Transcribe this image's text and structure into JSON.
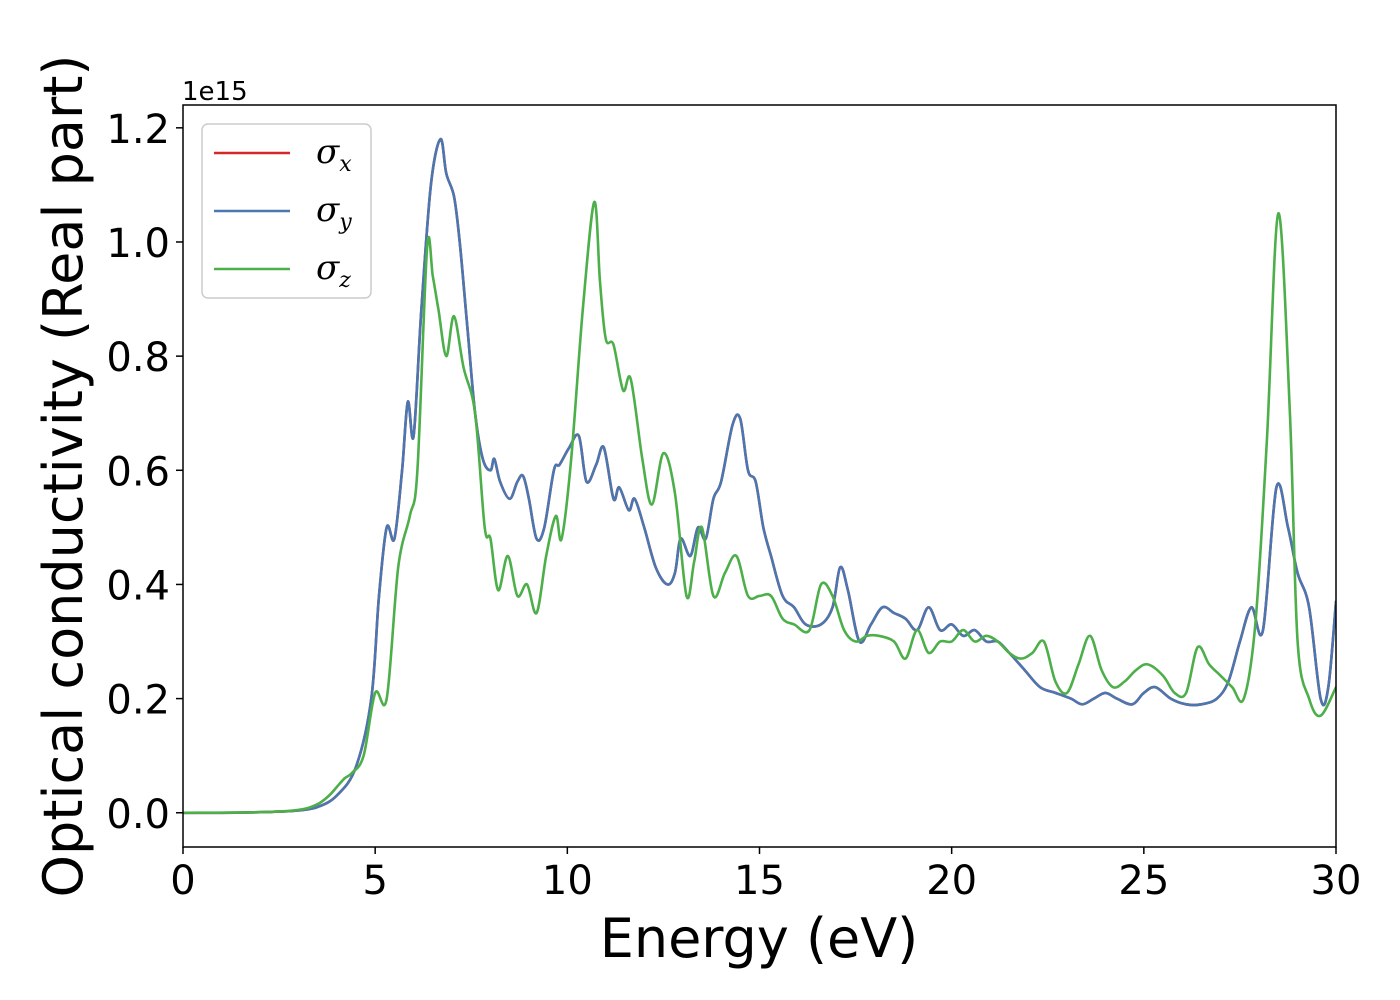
{
  "chart_data": {
    "type": "line",
    "xlabel": "Energy (eV)",
    "ylabel": "Optical conductivity (Real part)",
    "y_offset_label": "1e15",
    "xlim": [
      0,
      30
    ],
    "ylim": [
      -0.06,
      1.24
    ],
    "x_ticks": [
      0,
      5,
      10,
      15,
      20,
      25,
      30
    ],
    "x_tick_labels": [
      "0",
      "5",
      "10",
      "15",
      "20",
      "25",
      "30"
    ],
    "y_ticks": [
      0.0,
      0.2,
      0.4,
      0.6,
      0.8,
      1.0,
      1.2
    ],
    "y_tick_labels": [
      "0.0",
      "0.2",
      "0.4",
      "0.6",
      "0.8",
      "1.0",
      "1.2"
    ],
    "grid": false,
    "legend_position": "top-left",
    "series": [
      {
        "name": "σx",
        "symbol": "σ",
        "subscript": "x",
        "color": "#d62728",
        "x": [
          0,
          1,
          2,
          2.5,
          3,
          3.5,
          4,
          4.5,
          4.9,
          5.1,
          5.3,
          5.5,
          5.7,
          5.85,
          6.0,
          6.2,
          6.45,
          6.7,
          6.85,
          7.05,
          7.2,
          7.4,
          7.6,
          7.8,
          8.0,
          8.1,
          8.25,
          8.5,
          8.7,
          8.85,
          9.0,
          9.2,
          9.4,
          9.65,
          9.8,
          10.05,
          10.3,
          10.5,
          10.75,
          10.95,
          11.2,
          11.35,
          11.6,
          11.75,
          12.0,
          12.3,
          12.6,
          12.8,
          12.95,
          13.2,
          13.4,
          13.6,
          13.8,
          14.0,
          14.3,
          14.5,
          14.7,
          14.9,
          15.1,
          15.3,
          15.6,
          15.9,
          16.2,
          16.6,
          16.9,
          17.1,
          17.3,
          17.6,
          17.9,
          18.2,
          18.5,
          18.8,
          19.1,
          19.4,
          19.7,
          20.0,
          20.3,
          20.6,
          20.9,
          21.2,
          21.5,
          21.9,
          22.3,
          22.7,
          23.1,
          23.4,
          23.7,
          24.0,
          24.3,
          24.7,
          25.0,
          25.3,
          25.7,
          26.1,
          26.5,
          26.9,
          27.2,
          27.5,
          27.8,
          28.1,
          28.45,
          28.75,
          29.0,
          29.3,
          29.6,
          29.8,
          30.0
        ],
        "y": [
          0,
          0,
          0.001,
          0.002,
          0.004,
          0.01,
          0.03,
          0.08,
          0.2,
          0.38,
          0.5,
          0.48,
          0.6,
          0.72,
          0.66,
          0.88,
          1.1,
          1.18,
          1.12,
          1.08,
          1.0,
          0.85,
          0.7,
          0.62,
          0.6,
          0.62,
          0.58,
          0.55,
          0.58,
          0.59,
          0.55,
          0.48,
          0.5,
          0.6,
          0.61,
          0.64,
          0.66,
          0.58,
          0.61,
          0.64,
          0.55,
          0.57,
          0.53,
          0.55,
          0.5,
          0.43,
          0.4,
          0.42,
          0.48,
          0.45,
          0.5,
          0.48,
          0.55,
          0.58,
          0.68,
          0.69,
          0.6,
          0.58,
          0.5,
          0.45,
          0.38,
          0.36,
          0.33,
          0.33,
          0.36,
          0.43,
          0.39,
          0.3,
          0.33,
          0.36,
          0.35,
          0.34,
          0.32,
          0.36,
          0.32,
          0.33,
          0.31,
          0.32,
          0.3,
          0.3,
          0.28,
          0.25,
          0.22,
          0.21,
          0.2,
          0.19,
          0.2,
          0.21,
          0.2,
          0.19,
          0.21,
          0.22,
          0.2,
          0.19,
          0.19,
          0.2,
          0.23,
          0.3,
          0.36,
          0.32,
          0.57,
          0.5,
          0.42,
          0.36,
          0.2,
          0.22,
          0.37
        ]
      },
      {
        "name": "σy",
        "symbol": "σ",
        "subscript": "y",
        "color": "#4a77b0",
        "x": [
          0,
          1,
          2,
          2.5,
          3,
          3.5,
          4,
          4.5,
          4.9,
          5.1,
          5.3,
          5.5,
          5.7,
          5.85,
          6.0,
          6.2,
          6.45,
          6.7,
          6.85,
          7.05,
          7.2,
          7.4,
          7.6,
          7.8,
          8.0,
          8.1,
          8.25,
          8.5,
          8.7,
          8.85,
          9.0,
          9.2,
          9.4,
          9.65,
          9.8,
          10.05,
          10.3,
          10.5,
          10.75,
          10.95,
          11.2,
          11.35,
          11.6,
          11.75,
          12.0,
          12.3,
          12.6,
          12.8,
          12.95,
          13.2,
          13.4,
          13.6,
          13.8,
          14.0,
          14.3,
          14.5,
          14.7,
          14.9,
          15.1,
          15.3,
          15.6,
          15.9,
          16.2,
          16.6,
          16.9,
          17.1,
          17.3,
          17.6,
          17.9,
          18.2,
          18.5,
          18.8,
          19.1,
          19.4,
          19.7,
          20.0,
          20.3,
          20.6,
          20.9,
          21.2,
          21.5,
          21.9,
          22.3,
          22.7,
          23.1,
          23.4,
          23.7,
          24.0,
          24.3,
          24.7,
          25.0,
          25.3,
          25.7,
          26.1,
          26.5,
          26.9,
          27.2,
          27.5,
          27.8,
          28.1,
          28.45,
          28.75,
          29.0,
          29.3,
          29.6,
          29.8,
          30.0
        ],
        "y": [
          0,
          0,
          0.001,
          0.002,
          0.004,
          0.01,
          0.03,
          0.08,
          0.2,
          0.38,
          0.5,
          0.48,
          0.6,
          0.72,
          0.66,
          0.88,
          1.1,
          1.18,
          1.12,
          1.08,
          1.0,
          0.85,
          0.7,
          0.62,
          0.6,
          0.62,
          0.58,
          0.55,
          0.58,
          0.59,
          0.55,
          0.48,
          0.5,
          0.6,
          0.61,
          0.64,
          0.66,
          0.58,
          0.61,
          0.64,
          0.55,
          0.57,
          0.53,
          0.55,
          0.5,
          0.43,
          0.4,
          0.42,
          0.48,
          0.45,
          0.5,
          0.48,
          0.55,
          0.58,
          0.68,
          0.69,
          0.6,
          0.58,
          0.5,
          0.45,
          0.38,
          0.36,
          0.33,
          0.33,
          0.36,
          0.43,
          0.39,
          0.3,
          0.33,
          0.36,
          0.35,
          0.34,
          0.32,
          0.36,
          0.32,
          0.33,
          0.31,
          0.32,
          0.3,
          0.3,
          0.28,
          0.25,
          0.22,
          0.21,
          0.2,
          0.19,
          0.2,
          0.21,
          0.2,
          0.19,
          0.21,
          0.22,
          0.2,
          0.19,
          0.19,
          0.2,
          0.23,
          0.3,
          0.36,
          0.32,
          0.57,
          0.5,
          0.42,
          0.36,
          0.2,
          0.22,
          0.37
        ]
      },
      {
        "name": "σz",
        "symbol": "σ",
        "subscript": "z",
        "color": "#4daf4a",
        "x": [
          0,
          2,
          3,
          3.5,
          3.8,
          4.0,
          4.2,
          4.4,
          4.7,
          5.0,
          5.3,
          5.6,
          5.9,
          6.1,
          6.35,
          6.5,
          6.65,
          6.85,
          7.05,
          7.3,
          7.6,
          7.85,
          8.0,
          8.2,
          8.45,
          8.7,
          8.95,
          9.2,
          9.45,
          9.7,
          9.85,
          10.1,
          10.4,
          10.7,
          10.85,
          11.0,
          11.2,
          11.45,
          11.65,
          11.95,
          12.2,
          12.5,
          12.8,
          13.1,
          13.3,
          13.5,
          13.8,
          14.1,
          14.4,
          14.7,
          15.0,
          15.3,
          15.6,
          15.9,
          16.3,
          16.6,
          16.9,
          17.2,
          17.5,
          17.8,
          18.1,
          18.5,
          18.8,
          19.1,
          19.4,
          19.7,
          20.0,
          20.3,
          20.6,
          20.9,
          21.2,
          21.5,
          21.8,
          22.1,
          22.4,
          22.7,
          23.0,
          23.3,
          23.6,
          23.9,
          24.2,
          24.5,
          24.8,
          25.1,
          25.5,
          25.8,
          26.1,
          26.4,
          26.7,
          27.0,
          27.3,
          27.6,
          27.9,
          28.2,
          28.5,
          28.8,
          29.0,
          29.3,
          29.6,
          30.0
        ],
        "y": [
          0,
          0.001,
          0.005,
          0.015,
          0.03,
          0.045,
          0.06,
          0.07,
          0.1,
          0.21,
          0.2,
          0.43,
          0.52,
          0.6,
          0.99,
          0.94,
          0.88,
          0.8,
          0.87,
          0.78,
          0.7,
          0.5,
          0.48,
          0.39,
          0.45,
          0.38,
          0.4,
          0.35,
          0.45,
          0.52,
          0.48,
          0.62,
          0.88,
          1.07,
          0.93,
          0.83,
          0.82,
          0.74,
          0.76,
          0.62,
          0.54,
          0.63,
          0.56,
          0.38,
          0.44,
          0.5,
          0.38,
          0.42,
          0.45,
          0.38,
          0.38,
          0.38,
          0.34,
          0.33,
          0.32,
          0.4,
          0.38,
          0.32,
          0.3,
          0.31,
          0.31,
          0.3,
          0.27,
          0.32,
          0.28,
          0.3,
          0.3,
          0.32,
          0.3,
          0.31,
          0.3,
          0.28,
          0.27,
          0.28,
          0.3,
          0.23,
          0.21,
          0.26,
          0.31,
          0.25,
          0.22,
          0.23,
          0.25,
          0.26,
          0.24,
          0.21,
          0.21,
          0.29,
          0.26,
          0.24,
          0.22,
          0.2,
          0.33,
          0.65,
          1.05,
          0.7,
          0.3,
          0.2,
          0.17,
          0.22
        ]
      }
    ]
  }
}
